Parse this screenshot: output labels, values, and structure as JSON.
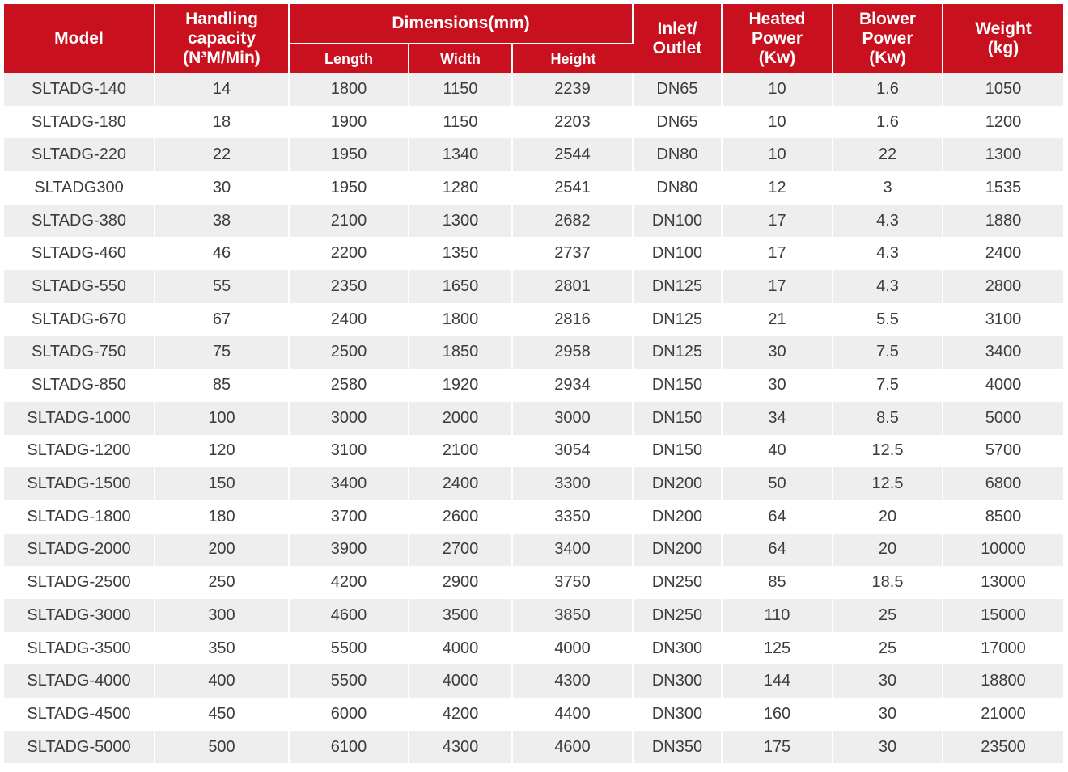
{
  "table": {
    "header": {
      "model": [
        "Model"
      ],
      "capacity": [
        "Handling",
        "capacity",
        "(N³M/Min)"
      ],
      "dimensions": [
        "Dimensions(mm)"
      ],
      "length": [
        "Length"
      ],
      "width": [
        "Width"
      ],
      "height": [
        "Height"
      ],
      "inlet": [
        "Inlet/",
        "Outlet"
      ],
      "heated": [
        "Heated",
        "Power",
        "(Kw)"
      ],
      "blower": [
        "Blower",
        "Power",
        "(Kw)"
      ],
      "weight": [
        "Weight",
        "(kg)"
      ]
    },
    "rows": [
      [
        "SLTADG-140",
        14,
        1800,
        1150,
        2239,
        "DN65",
        10,
        1.6,
        1050
      ],
      [
        "SLTADG-180",
        18,
        1900,
        1150,
        2203,
        "DN65",
        10,
        1.6,
        1200
      ],
      [
        "SLTADG-220",
        22,
        1950,
        1340,
        2544,
        "DN80",
        10,
        22,
        1300
      ],
      [
        "SLTADG300",
        30,
        1950,
        1280,
        2541,
        "DN80",
        12,
        3,
        1535
      ],
      [
        "SLTADG-380",
        38,
        2100,
        1300,
        2682,
        "DN100",
        17,
        4.3,
        1880
      ],
      [
        "SLTADG-460",
        46,
        2200,
        1350,
        2737,
        "DN100",
        17,
        4.3,
        2400
      ],
      [
        "SLTADG-550",
        55,
        2350,
        1650,
        2801,
        "DN125",
        17,
        4.3,
        2800
      ],
      [
        "SLTADG-670",
        67,
        2400,
        1800,
        2816,
        "DN125",
        21,
        5.5,
        3100
      ],
      [
        "SLTADG-750",
        75,
        2500,
        1850,
        2958,
        "DN125",
        30,
        7.5,
        3400
      ],
      [
        "SLTADG-850",
        85,
        2580,
        1920,
        2934,
        "DN150",
        30,
        7.5,
        4000
      ],
      [
        "SLTADG-1000",
        100,
        3000,
        2000,
        3000,
        "DN150",
        34,
        8.5,
        5000
      ],
      [
        "SLTADG-1200",
        120,
        3100,
        2100,
        3054,
        "DN150",
        40,
        12.5,
        5700
      ],
      [
        "SLTADG-1500",
        150,
        3400,
        2400,
        3300,
        "DN200",
        50,
        12.5,
        6800
      ],
      [
        "SLTADG-1800",
        180,
        3700,
        2600,
        3350,
        "DN200",
        64,
        20,
        8500
      ],
      [
        "SLTADG-2000",
        200,
        3900,
        2700,
        3400,
        "DN200",
        64,
        20,
        10000
      ],
      [
        "SLTADG-2500",
        250,
        4200,
        2900,
        3750,
        "DN250",
        85,
        18.5,
        13000
      ],
      [
        "SLTADG-3000",
        300,
        4600,
        3500,
        3850,
        "DN250",
        110,
        25,
        15000
      ],
      [
        "SLTADG-3500",
        350,
        5500,
        4000,
        4000,
        "DN300",
        125,
        25,
        17000
      ],
      [
        "SLTADG-4000",
        400,
        5500,
        4000,
        4300,
        "DN300",
        144,
        30,
        18800
      ],
      [
        "SLTADG-4500",
        450,
        6000,
        4200,
        4400,
        "DN300",
        160,
        30,
        21000
      ],
      [
        "SLTADG-5000",
        500,
        6100,
        4300,
        4600,
        "DN350",
        175,
        30,
        23500
      ]
    ]
  }
}
